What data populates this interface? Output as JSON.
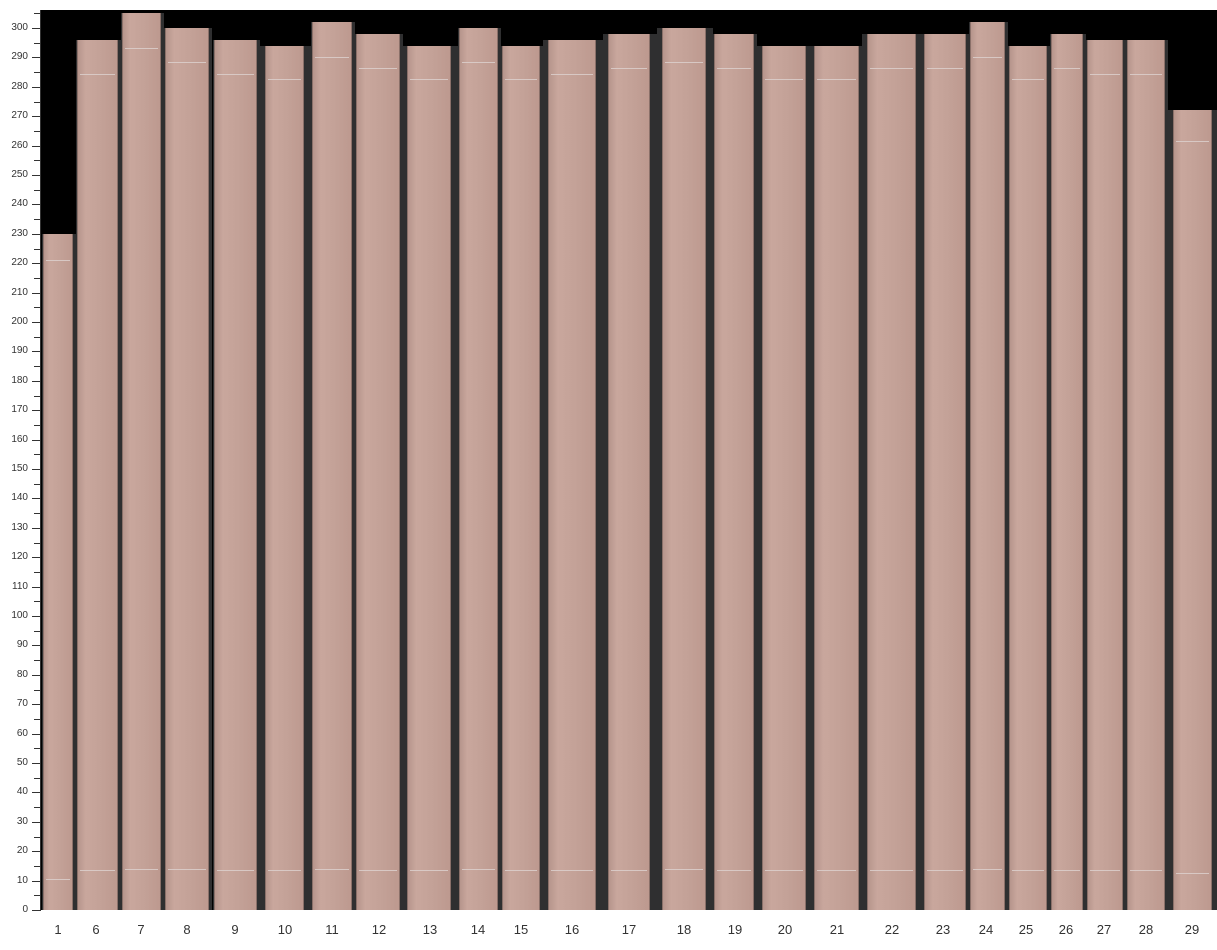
{
  "chart_data": {
    "type": "bar",
    "categories": [
      "1",
      "6",
      "7",
      "8",
      "9",
      "10",
      "11",
      "12",
      "13",
      "14",
      "15",
      "16",
      "17",
      "18",
      "19",
      "20",
      "21",
      "22",
      "23",
      "24",
      "25",
      "26",
      "27",
      "28",
      "29"
    ],
    "values": [
      230,
      296,
      305,
      300,
      296,
      294,
      302,
      298,
      294,
      300,
      294,
      296,
      298,
      300,
      298,
      294,
      294,
      298,
      298,
      302,
      294,
      298,
      296,
      296,
      272
    ],
    "ylim": [
      0,
      305
    ],
    "yticks": [
      "0",
      "10",
      "20",
      "30",
      "40",
      "50",
      "60",
      "70",
      "80",
      "90",
      "100",
      "110",
      "120",
      "130",
      "140",
      "150",
      "160",
      "170",
      "180",
      "190",
      "200",
      "210",
      "220",
      "230",
      "240",
      "250",
      "260",
      "270",
      "280",
      "290",
      "300"
    ],
    "grid": false,
    "colors": {
      "plank": "#c4a096",
      "background_above": "#000000",
      "background_gap": "#2f2f30"
    }
  }
}
